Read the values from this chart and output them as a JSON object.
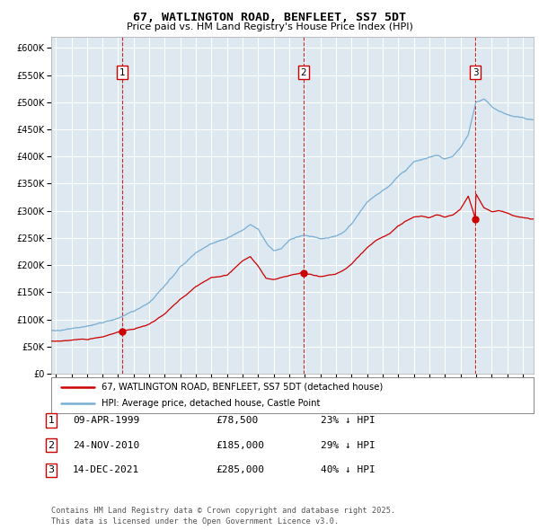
{
  "title": "67, WATLINGTON ROAD, BENFLEET, SS7 5DT",
  "subtitle": "Price paid vs. HM Land Registry's House Price Index (HPI)",
  "legend_line1": "67, WATLINGTON ROAD, BENFLEET, SS7 5DT (detached house)",
  "legend_line2": "HPI: Average price, detached house, Castle Point",
  "footer": "Contains HM Land Registry data © Crown copyright and database right 2025.\nThis data is licensed under the Open Government Licence v3.0.",
  "table_rows": [
    {
      "num": "1",
      "date": "09-APR-1999",
      "price": "£78,500",
      "pct": "23% ↓ HPI"
    },
    {
      "num": "2",
      "date": "24-NOV-2010",
      "price": "£185,000",
      "pct": "29% ↓ HPI"
    },
    {
      "num": "3",
      "date": "14-DEC-2021",
      "price": "£285,000",
      "pct": "40% ↓ HPI"
    }
  ],
  "sale_dates_decimal": [
    1999.27,
    2010.9,
    2021.95
  ],
  "sale_prices": [
    78500,
    185000,
    285000
  ],
  "red_color": "#cc0000",
  "blue_color": "#7aafd4",
  "plot_bg": "#dde8f0",
  "grid_color": "#ffffff",
  "ylim": [
    0,
    620000
  ],
  "xlim_start": 1994.7,
  "xlim_end": 2025.7,
  "hpi_keypoints_x": [
    1995.0,
    1996.0,
    1997.0,
    1998.0,
    1999.0,
    2000.0,
    2001.0,
    2002.0,
    2003.0,
    2004.0,
    2005.0,
    2006.0,
    2007.0,
    2007.5,
    2008.0,
    2008.5,
    2009.0,
    2009.5,
    2010.0,
    2010.5,
    2011.0,
    2011.5,
    2012.0,
    2012.5,
    2013.0,
    2013.5,
    2014.0,
    2014.5,
    2015.0,
    2015.5,
    2016.0,
    2016.5,
    2017.0,
    2017.5,
    2018.0,
    2018.5,
    2019.0,
    2019.5,
    2020.0,
    2020.5,
    2021.0,
    2021.5,
    2022.0,
    2022.5,
    2023.0,
    2023.5,
    2024.0,
    2024.5,
    2025.0,
    2025.5
  ],
  "hpi_keypoints_y": [
    80000,
    83000,
    87000,
    92000,
    100000,
    113000,
    130000,
    160000,
    195000,
    220000,
    238000,
    248000,
    265000,
    275000,
    265000,
    240000,
    225000,
    228000,
    245000,
    252000,
    255000,
    252000,
    248000,
    250000,
    255000,
    262000,
    275000,
    295000,
    315000,
    325000,
    335000,
    345000,
    360000,
    370000,
    385000,
    390000,
    395000,
    400000,
    395000,
    400000,
    415000,
    440000,
    500000,
    505000,
    490000,
    480000,
    475000,
    472000,
    470000,
    468000
  ],
  "red_keypoints_x": [
    1995.0,
    1996.0,
    1997.0,
    1998.0,
    1999.27,
    2000.0,
    2001.0,
    2002.0,
    2003.0,
    2004.0,
    2005.0,
    2006.0,
    2007.0,
    2007.5,
    2008.0,
    2008.5,
    2009.0,
    2009.5,
    2010.0,
    2010.9,
    2011.0,
    2011.5,
    2012.0,
    2012.5,
    2013.0,
    2013.5,
    2014.0,
    2014.5,
    2015.0,
    2015.5,
    2016.0,
    2016.5,
    2017.0,
    2017.5,
    2018.0,
    2018.5,
    2019.0,
    2019.5,
    2020.0,
    2020.5,
    2021.0,
    2021.5,
    2021.95,
    2022.0,
    2022.5,
    2023.0,
    2023.5,
    2024.0,
    2024.5,
    2025.0,
    2025.5
  ],
  "red_keypoints_y": [
    60000,
    62000,
    63000,
    68000,
    78500,
    82000,
    92000,
    112000,
    140000,
    162000,
    178000,
    183000,
    210000,
    218000,
    200000,
    178000,
    175000,
    178000,
    180000,
    185000,
    183000,
    182000,
    178000,
    180000,
    183000,
    190000,
    200000,
    215000,
    230000,
    242000,
    250000,
    258000,
    270000,
    278000,
    285000,
    288000,
    285000,
    290000,
    285000,
    290000,
    300000,
    325000,
    285000,
    330000,
    305000,
    298000,
    300000,
    295000,
    290000,
    288000,
    285000
  ]
}
